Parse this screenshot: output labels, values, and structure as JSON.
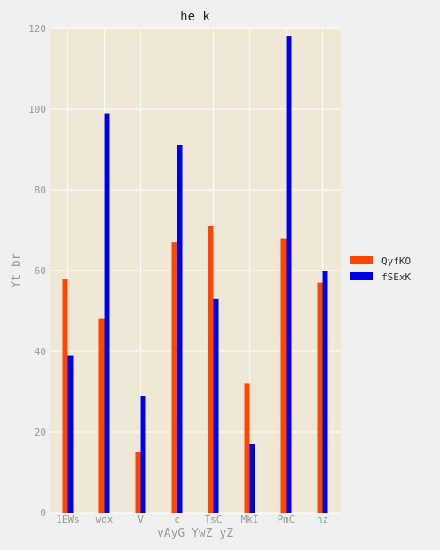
{
  "chart_data": {
    "type": "bar",
    "title": "he k",
    "xlabel": "vAyG YwZ yZ",
    "ylabel": "Yt br",
    "categories": [
      "1EWs",
      "wdx",
      "V",
      "c",
      "TsC",
      "MkI",
      "PmC",
      "hz"
    ],
    "series": [
      {
        "name": "QyfKO",
        "color": "#ff4500",
        "values": [
          58,
          48,
          15,
          67,
          71,
          32,
          68,
          57
        ]
      },
      {
        "name": "fSExK",
        "color": "#0000e6",
        "values": [
          39,
          99,
          29,
          91,
          53,
          17,
          118,
          60
        ]
      }
    ],
    "ylim": [
      0,
      120
    ],
    "yticks": [
      0,
      20,
      40,
      60,
      80,
      100,
      120
    ],
    "grid": true,
    "legend_position": "right",
    "colors": {
      "plot_background": "#efe8d6",
      "page_background": "#f0f0f0",
      "grid": "#ffffff",
      "text": "#999999"
    }
  }
}
